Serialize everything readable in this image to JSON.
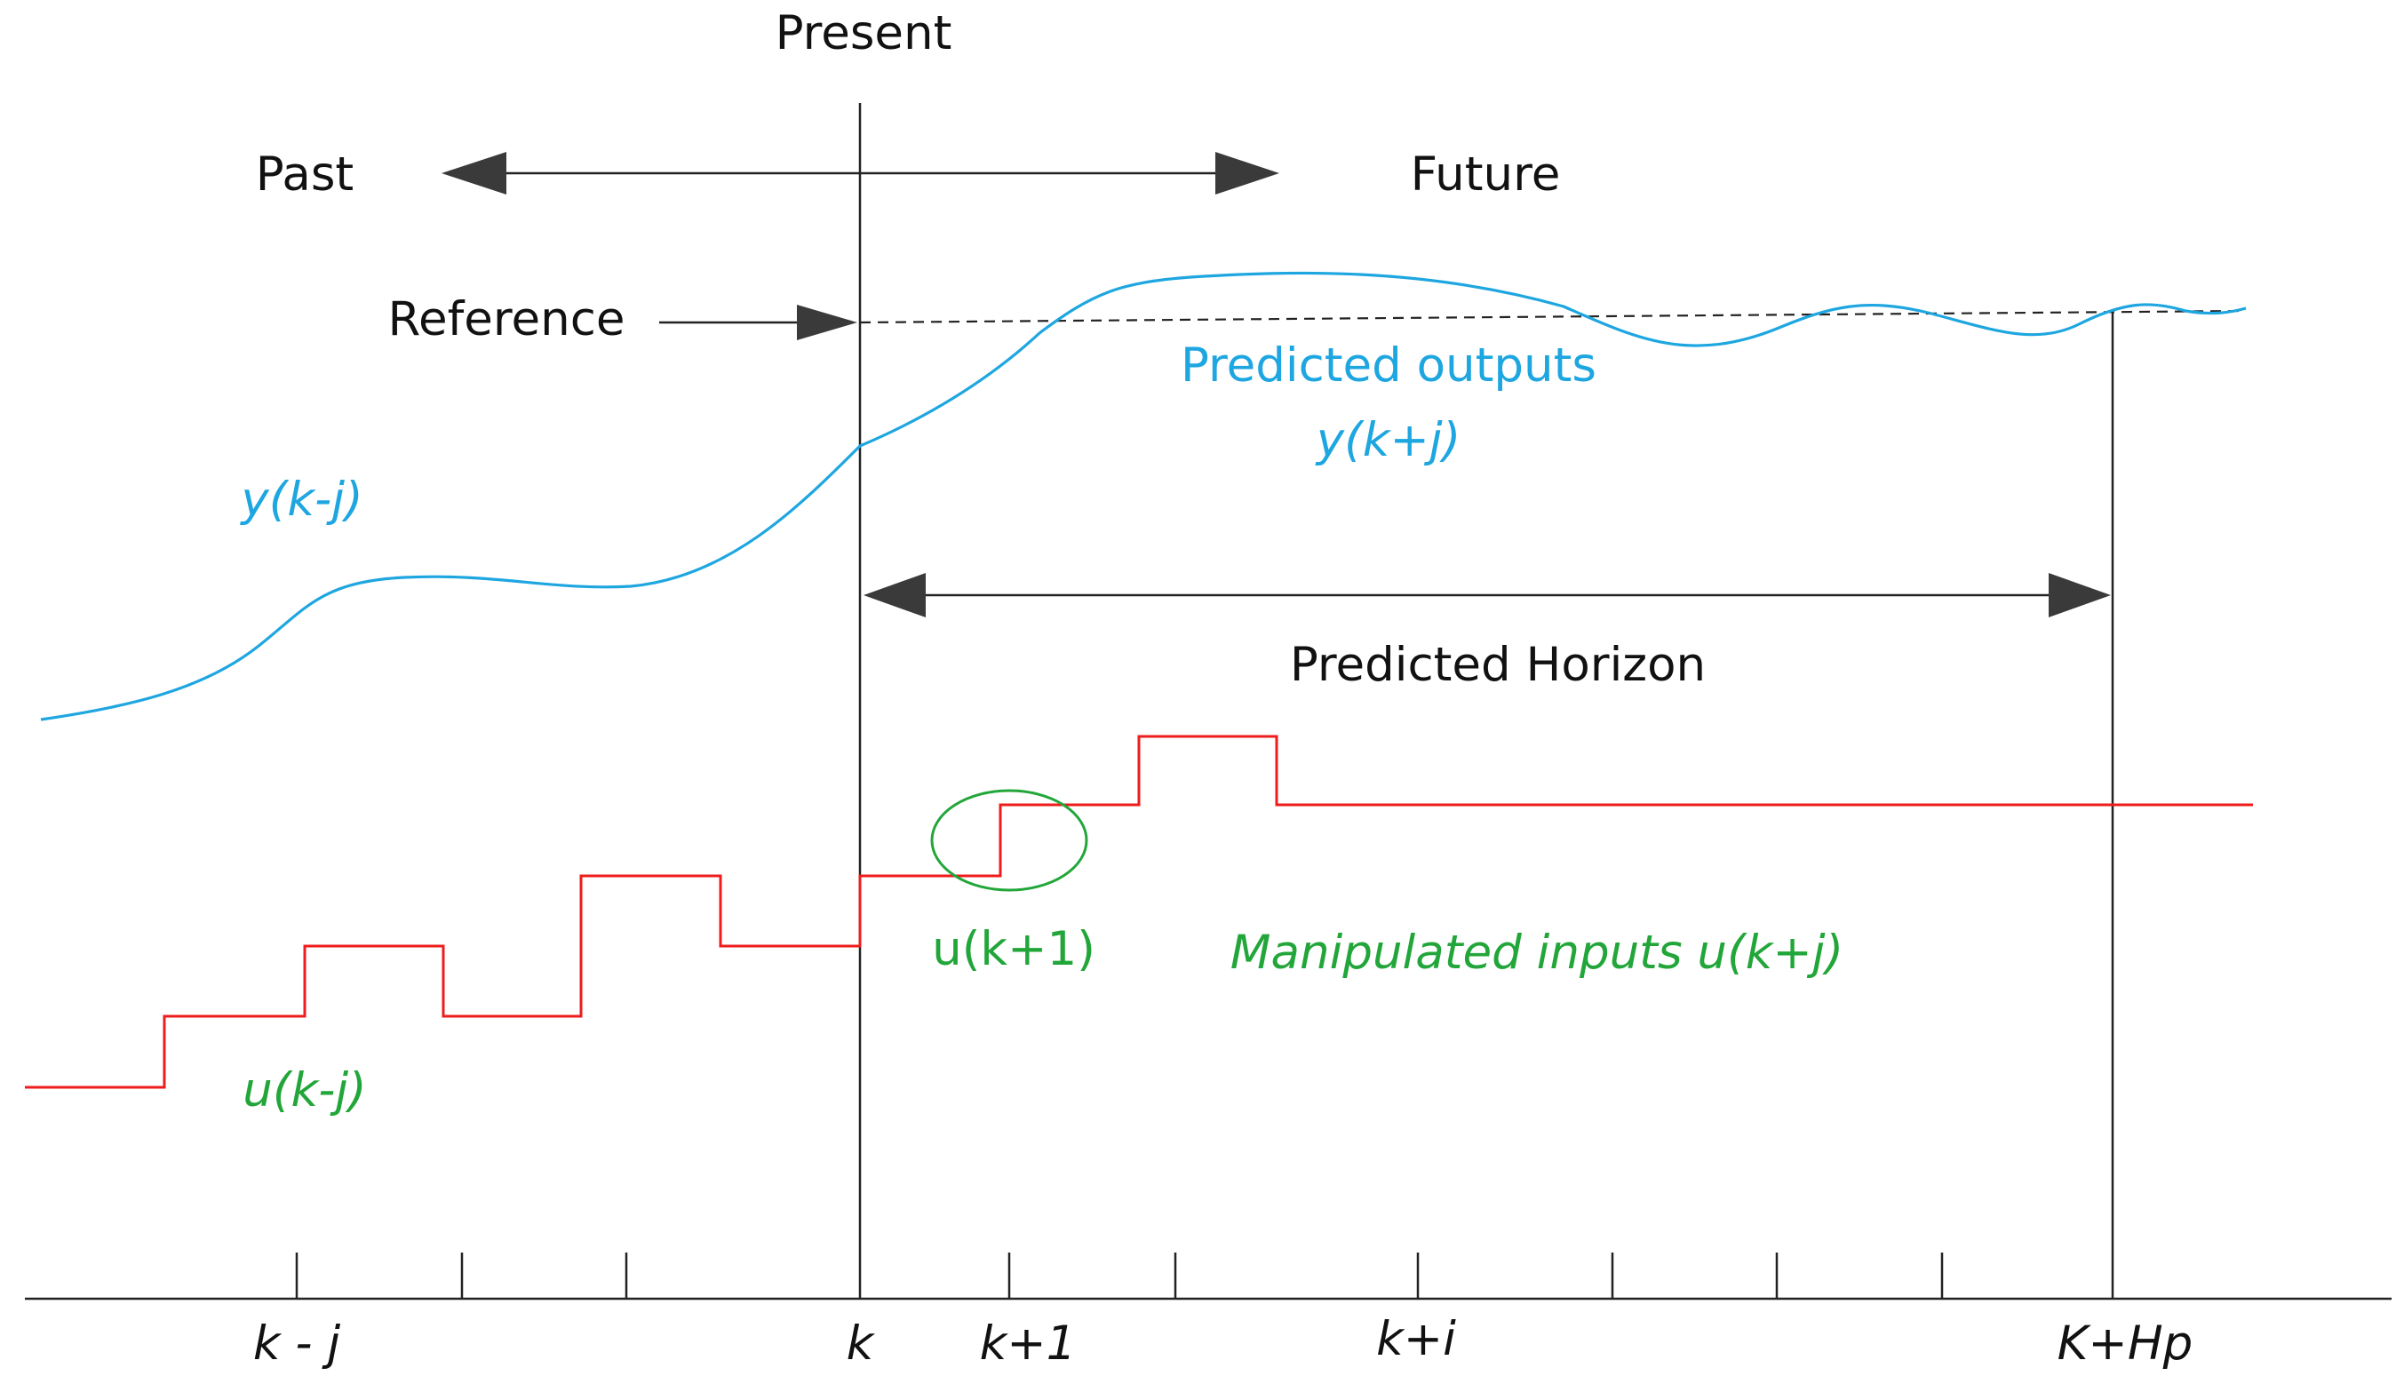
{
  "labels": {
    "present": "Present",
    "past": "Past",
    "future": "Future",
    "reference": "Reference",
    "predicted_outputs": "Predicted outputs",
    "y_future": "y(k+j)",
    "y_past": "y(k-j)",
    "predicted_horizon": "Predicted Horizon",
    "u_next": "u(k+1)",
    "manipulated_inputs": "Manipulated inputs u(k+j)",
    "u_past": "u(k-j)"
  },
  "axis_ticks": {
    "k_minus_j": "k - j",
    "k": "k",
    "k_plus_1": "k+1",
    "k_plus_i": "k+i",
    "k_plus_hp": "K+Hp"
  },
  "colors": {
    "output_curve": "#1ea6e0",
    "input_steps": "#ee1c1c",
    "input_label": "#22a63a",
    "lines": "#222222"
  }
}
